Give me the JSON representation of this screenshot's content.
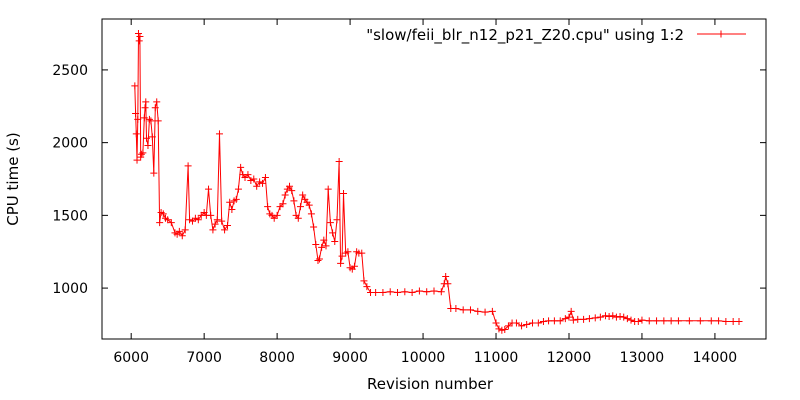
{
  "chart_data": {
    "type": "line",
    "title": "",
    "xlabel": "Revision number",
    "ylabel": "CPU time (s)",
    "xlim": [
      5600,
      14700
    ],
    "ylim": [
      650,
      2850
    ],
    "x_ticks": [
      6000,
      7000,
      8000,
      9000,
      10000,
      11000,
      12000,
      13000,
      14000
    ],
    "y_ticks": [
      1000,
      1500,
      2000,
      2500
    ],
    "grid": false,
    "legend_position": "top-right",
    "series": [
      {
        "name": "\"slow/feii_blr_n12_p21_Z20.cpu\" using 1:2",
        "color": "#ff0000",
        "marker": "plus",
        "points": [
          [
            6050,
            2390
          ],
          [
            6060,
            2200
          ],
          [
            6070,
            2060
          ],
          [
            6080,
            1880
          ],
          [
            6090,
            2160
          ],
          [
            6100,
            2750
          ],
          [
            6110,
            2700
          ],
          [
            6120,
            2730
          ],
          [
            6130,
            1900
          ],
          [
            6140,
            1920
          ],
          [
            6160,
            1930
          ],
          [
            6180,
            2170
          ],
          [
            6190,
            2240
          ],
          [
            6200,
            2280
          ],
          [
            6210,
            2030
          ],
          [
            6230,
            1980
          ],
          [
            6250,
            2160
          ],
          [
            6270,
            2150
          ],
          [
            6290,
            2040
          ],
          [
            6310,
            1790
          ],
          [
            6330,
            2240
          ],
          [
            6350,
            2280
          ],
          [
            6370,
            2150
          ],
          [
            6390,
            1450
          ],
          [
            6410,
            1520
          ],
          [
            6440,
            1510
          ],
          [
            6470,
            1480
          ],
          [
            6500,
            1470
          ],
          [
            6550,
            1450
          ],
          [
            6600,
            1380
          ],
          [
            6630,
            1370
          ],
          [
            6660,
            1390
          ],
          [
            6700,
            1360
          ],
          [
            6740,
            1400
          ],
          [
            6780,
            1840
          ],
          [
            6800,
            1470
          ],
          [
            6840,
            1460
          ],
          [
            6880,
            1480
          ],
          [
            6920,
            1470
          ],
          [
            6960,
            1500
          ],
          [
            7000,
            1520
          ],
          [
            7030,
            1500
          ],
          [
            7060,
            1680
          ],
          [
            7090,
            1500
          ],
          [
            7120,
            1400
          ],
          [
            7150,
            1440
          ],
          [
            7180,
            1470
          ],
          [
            7210,
            2060
          ],
          [
            7240,
            1460
          ],
          [
            7280,
            1400
          ],
          [
            7320,
            1430
          ],
          [
            7350,
            1590
          ],
          [
            7380,
            1540
          ],
          [
            7410,
            1600
          ],
          [
            7440,
            1610
          ],
          [
            7470,
            1680
          ],
          [
            7500,
            1830
          ],
          [
            7530,
            1780
          ],
          [
            7560,
            1760
          ],
          [
            7600,
            1780
          ],
          [
            7640,
            1740
          ],
          [
            7680,
            1750
          ],
          [
            7720,
            1700
          ],
          [
            7760,
            1730
          ],
          [
            7800,
            1720
          ],
          [
            7840,
            1760
          ],
          [
            7870,
            1560
          ],
          [
            7900,
            1510
          ],
          [
            7930,
            1500
          ],
          [
            7960,
            1480
          ],
          [
            8000,
            1500
          ],
          [
            8040,
            1560
          ],
          [
            8080,
            1580
          ],
          [
            8110,
            1640
          ],
          [
            8140,
            1680
          ],
          [
            8170,
            1700
          ],
          [
            8200,
            1670
          ],
          [
            8230,
            1600
          ],
          [
            8260,
            1500
          ],
          [
            8290,
            1480
          ],
          [
            8320,
            1560
          ],
          [
            8350,
            1640
          ],
          [
            8380,
            1610
          ],
          [
            8410,
            1590
          ],
          [
            8440,
            1570
          ],
          [
            8470,
            1510
          ],
          [
            8500,
            1420
          ],
          [
            8530,
            1300
          ],
          [
            8560,
            1190
          ],
          [
            8580,
            1200
          ],
          [
            8610,
            1280
          ],
          [
            8640,
            1330
          ],
          [
            8670,
            1290
          ],
          [
            8700,
            1680
          ],
          [
            8730,
            1450
          ],
          [
            8760,
            1380
          ],
          [
            8790,
            1320
          ],
          [
            8820,
            1470
          ],
          [
            8850,
            1870
          ],
          [
            8870,
            1170
          ],
          [
            8890,
            1220
          ],
          [
            8910,
            1650
          ],
          [
            8940,
            1240
          ],
          [
            8970,
            1250
          ],
          [
            9000,
            1140
          ],
          [
            9030,
            1130
          ],
          [
            9060,
            1150
          ],
          [
            9090,
            1250
          ],
          [
            9120,
            1240
          ],
          [
            9160,
            1240
          ],
          [
            9190,
            1050
          ],
          [
            9230,
            1010
          ],
          [
            9280,
            970
          ],
          [
            9350,
            970
          ],
          [
            9450,
            970
          ],
          [
            9550,
            975
          ],
          [
            9650,
            970
          ],
          [
            9750,
            975
          ],
          [
            9850,
            970
          ],
          [
            9950,
            980
          ],
          [
            10050,
            975
          ],
          [
            10150,
            980
          ],
          [
            10250,
            975
          ],
          [
            10290,
            1030
          ],
          [
            10310,
            1080
          ],
          [
            10340,
            1030
          ],
          [
            10380,
            860
          ],
          [
            10450,
            860
          ],
          [
            10550,
            850
          ],
          [
            10650,
            850
          ],
          [
            10750,
            840
          ],
          [
            10850,
            835
          ],
          [
            10950,
            840
          ],
          [
            11000,
            760
          ],
          [
            11040,
            720
          ],
          [
            11080,
            710
          ],
          [
            11120,
            715
          ],
          [
            11170,
            740
          ],
          [
            11220,
            760
          ],
          [
            11280,
            760
          ],
          [
            11350,
            740
          ],
          [
            11420,
            750
          ],
          [
            11500,
            760
          ],
          [
            11580,
            760
          ],
          [
            11650,
            770
          ],
          [
            11720,
            775
          ],
          [
            11800,
            775
          ],
          [
            11880,
            775
          ],
          [
            11950,
            790
          ],
          [
            12000,
            800
          ],
          [
            12030,
            840
          ],
          [
            12060,
            780
          ],
          [
            12120,
            785
          ],
          [
            12200,
            785
          ],
          [
            12280,
            790
          ],
          [
            12360,
            795
          ],
          [
            12430,
            800
          ],
          [
            12500,
            810
          ],
          [
            12550,
            805
          ],
          [
            12600,
            810
          ],
          [
            12650,
            800
          ],
          [
            12700,
            805
          ],
          [
            12750,
            800
          ],
          [
            12800,
            790
          ],
          [
            12850,
            780
          ],
          [
            12900,
            770
          ],
          [
            12950,
            770
          ],
          [
            13000,
            780
          ],
          [
            13100,
            775
          ],
          [
            13200,
            775
          ],
          [
            13300,
            775
          ],
          [
            13400,
            775
          ],
          [
            13500,
            775
          ],
          [
            13650,
            775
          ],
          [
            13800,
            775
          ],
          [
            13950,
            775
          ],
          [
            14050,
            775
          ],
          [
            14150,
            770
          ],
          [
            14250,
            770
          ],
          [
            14330,
            770
          ]
        ]
      }
    ]
  }
}
